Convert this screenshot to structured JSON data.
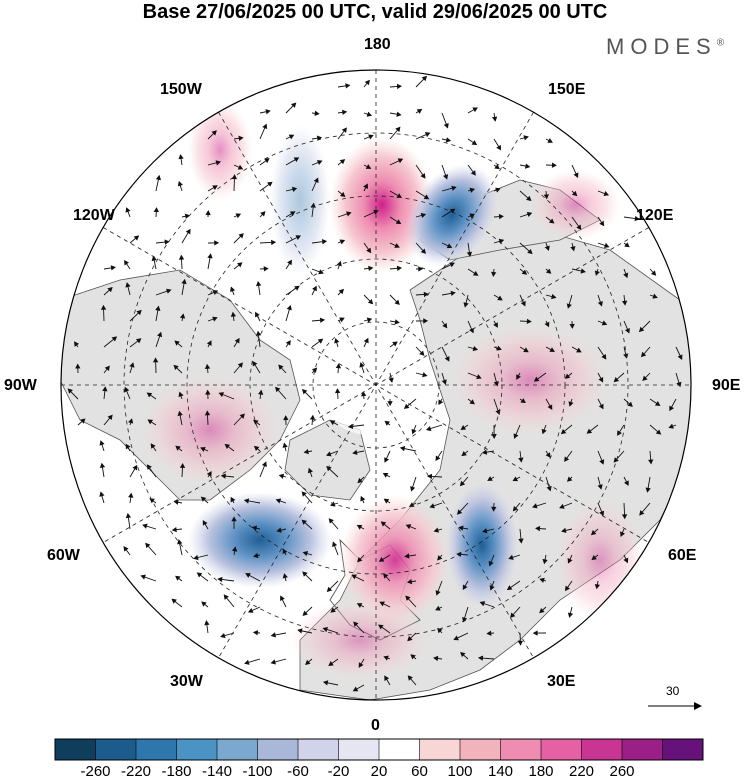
{
  "title": "Base 27/06/2025 00 UTC, valid 29/06/2025 00 UTC",
  "brand": "MODES",
  "brand_mark": "®",
  "longitude_labels": {
    "top": "180",
    "bottom": "0",
    "left": "90W",
    "right": "90E",
    "upper_left_1": "150W",
    "upper_left_2": "120W",
    "lower_left_1": "60W",
    "lower_left_2": "30W",
    "upper_right_1": "150E",
    "upper_right_2": "120E",
    "lower_right_1": "60E",
    "lower_right_2": "30E"
  },
  "reference_vector": "30",
  "colorbar": {
    "ticks": [
      "-260",
      "-220",
      "-180",
      "-140",
      "-100",
      "-60",
      "-20",
      "20",
      "60",
      "100",
      "140",
      "180",
      "220",
      "260"
    ],
    "colors": [
      "#0f3d5c",
      "#1c5c8c",
      "#2e77ad",
      "#4b93c4",
      "#7aa8cf",
      "#a9b7d9",
      "#d0d3ea",
      "#e6e6f2",
      "#ffffff",
      "#f8d6d6",
      "#f2b3bc",
      "#ee8db1",
      "#e561a4",
      "#c83592",
      "#9a1f86",
      "#66127a"
    ]
  },
  "map_features": {
    "anomalies": [
      {
        "lon_deg": 180,
        "lat_deg": 67,
        "sign": "positive",
        "intensity": 0.75
      },
      {
        "lon_deg": 150,
        "lat_deg": 72,
        "sign": "negative",
        "intensity": 0.5
      },
      {
        "lon_deg": -40,
        "lat_deg": 55,
        "sign": "negative",
        "intensity": 0.8
      },
      {
        "lon_deg": 0,
        "lat_deg": 60,
        "sign": "positive",
        "intensity": 0.55
      },
      {
        "lon_deg": 30,
        "lat_deg": 58,
        "sign": "negative",
        "intensity": 0.6
      },
      {
        "lon_deg": -90,
        "lat_deg": 50,
        "sign": "positive",
        "intensity": 0.3
      },
      {
        "lon_deg": 90,
        "lat_deg": 55,
        "sign": "positive",
        "intensity": 0.3
      },
      {
        "lon_deg": 60,
        "lat_deg": 40,
        "sign": "positive",
        "intensity": 0.25
      }
    ]
  }
}
